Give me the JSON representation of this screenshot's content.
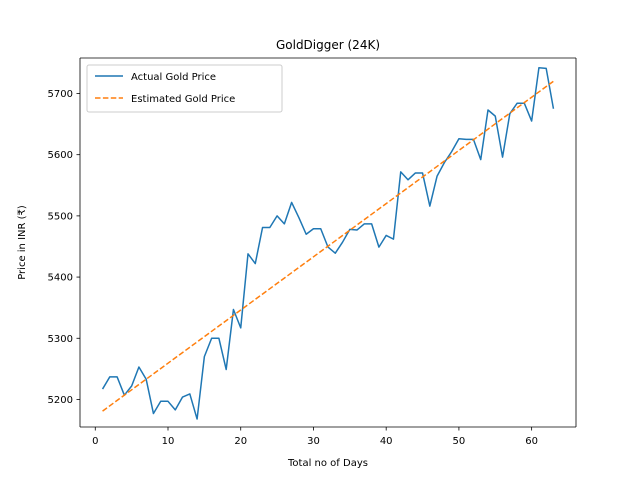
{
  "chart_data": {
    "type": "line",
    "title": "GoldDigger (24K)",
    "xlabel": "Total no of Days",
    "ylabel": "Price in INR (₹)",
    "xlim": [
      -2.1,
      66.1
    ],
    "ylim": [
      5155,
      5758
    ],
    "xticks": [
      0,
      10,
      20,
      30,
      40,
      50,
      60
    ],
    "yticks": [
      5200,
      5300,
      5400,
      5500,
      5600,
      5700
    ],
    "grid": false,
    "legend_position": "upper-left",
    "series": [
      {
        "name": "Actual Gold Price",
        "color": "#1f77b4",
        "style": "solid",
        "x": [
          1,
          2,
          3,
          4,
          5,
          6,
          7,
          8,
          9,
          10,
          11,
          12,
          13,
          14,
          15,
          16,
          17,
          18,
          19,
          20,
          21,
          22,
          23,
          24,
          25,
          26,
          27,
          28,
          29,
          30,
          31,
          32,
          33,
          34,
          35,
          36,
          37,
          38,
          39,
          40,
          41,
          42,
          43,
          44,
          45,
          46,
          47,
          48,
          49,
          50,
          51,
          52,
          53,
          54,
          55,
          56,
          57,
          58,
          59,
          60,
          61,
          62,
          63
        ],
        "y": [
          5217,
          5237,
          5237,
          5207,
          5222,
          5253,
          5233,
          5177,
          5197,
          5197,
          5183,
          5204,
          5209,
          5168,
          5270,
          5300,
          5300,
          5249,
          5347,
          5317,
          5438,
          5422,
          5481,
          5481,
          5500,
          5487,
          5522,
          5497,
          5470,
          5479,
          5479,
          5449,
          5439,
          5457,
          5478,
          5477,
          5487,
          5487,
          5449,
          5468,
          5462,
          5572,
          5559,
          5570,
          5570,
          5516,
          5565,
          5587,
          5605,
          5626,
          5625,
          5625,
          5592,
          5673,
          5663,
          5596,
          5667,
          5684,
          5684,
          5655,
          5742,
          5741,
          5675
        ]
      },
      {
        "name": "Estimated Gold Price",
        "color": "#ff7f0e",
        "style": "dashed",
        "x": [
          1,
          63
        ],
        "y": [
          5181,
          5720
        ]
      }
    ]
  }
}
